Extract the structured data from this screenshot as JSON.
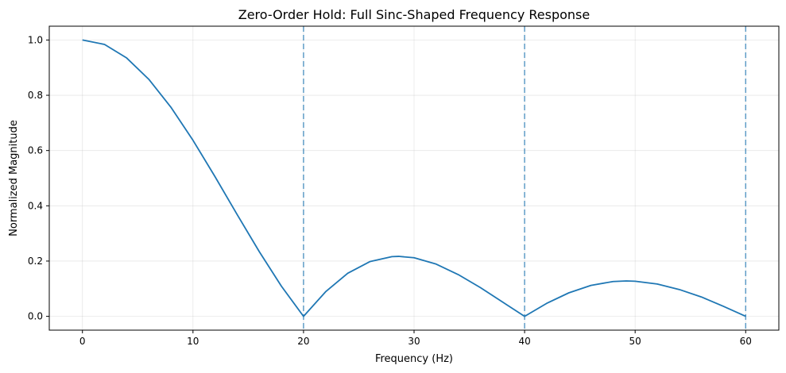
{
  "chart_data": {
    "type": "line",
    "title": "Zero-Order Hold: Full Sinc-Shaped Frequency Response",
    "xlabel": "Frequency (Hz)",
    "ylabel": "Normalized Magnitude",
    "xlim": [
      -3,
      63
    ],
    "ylim": [
      -0.05,
      1.05
    ],
    "x_ticks": [
      0,
      10,
      20,
      30,
      40,
      50,
      60
    ],
    "y_ticks": [
      0.0,
      0.2,
      0.4,
      0.6,
      0.8,
      1.0
    ],
    "x_tick_labels": [
      "0",
      "10",
      "20",
      "30",
      "40",
      "50",
      "60"
    ],
    "y_tick_labels": [
      "0.0",
      "0.2",
      "0.4",
      "0.6",
      "0.8",
      "1.0"
    ],
    "grid": true,
    "series": [
      {
        "color": "#1f77b4",
        "x": [
          0,
          2,
          4,
          6,
          8,
          10,
          12,
          14,
          16,
          18,
          20,
          22,
          24,
          26,
          28,
          28.6,
          30,
          32,
          34,
          36,
          38,
          40,
          42,
          44,
          46,
          48,
          49.2,
          50,
          52,
          54,
          56,
          58,
          60
        ],
        "y": [
          1.0,
          0.984,
          0.935,
          0.858,
          0.757,
          0.637,
          0.505,
          0.368,
          0.234,
          0.109,
          0.0,
          0.089,
          0.156,
          0.198,
          0.216,
          0.217,
          0.212,
          0.189,
          0.151,
          0.104,
          0.052,
          0.0,
          0.047,
          0.085,
          0.112,
          0.126,
          0.128,
          0.127,
          0.117,
          0.097,
          0.07,
          0.036,
          0.0
        ]
      }
    ],
    "vlines": {
      "x": [
        20,
        40,
        60
      ],
      "style": "dashed",
      "color": "#1f77b4"
    }
  }
}
